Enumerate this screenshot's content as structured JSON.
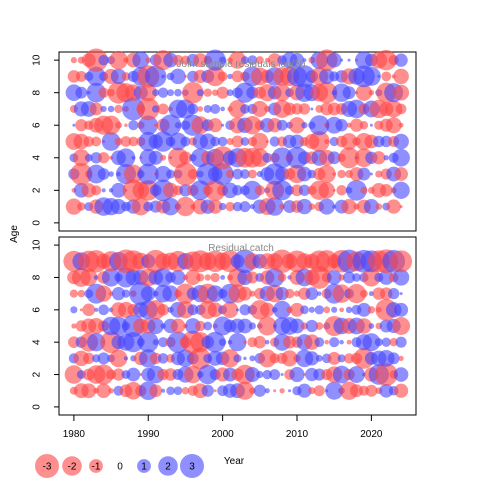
{
  "chart_data": [
    {
      "type": "scatter",
      "title": "Joint sample residuals log(N)",
      "ylabel": "Age",
      "xlim": [
        1978,
        2026
      ],
      "ylim": [
        -0.5,
        10.5
      ],
      "x_ticks": [
        "1980",
        "1990",
        "2000",
        "2010",
        "2020"
      ],
      "y_ticks": [
        "0",
        "2",
        "4",
        "6",
        "8",
        "10"
      ],
      "ages": [
        1,
        2,
        3,
        4,
        5,
        6,
        7,
        8,
        9,
        10
      ],
      "year_start": 1980,
      "year_end": 2024,
      "seed": 17,
      "colors": {
        "positive": "#4444ff",
        "negative": "#ff4444"
      }
    },
    {
      "type": "scatter",
      "title": "Residual catch",
      "xlabel": "Year",
      "ylabel": "Age",
      "xlim": [
        1978,
        2026
      ],
      "ylim": [
        -0.5,
        10.5
      ],
      "x_ticks": [
        "1980",
        "1990",
        "2000",
        "2010",
        "2020"
      ],
      "y_ticks": [
        "0",
        "2",
        "4",
        "6",
        "8",
        "10"
      ],
      "ages": [
        1,
        2,
        3,
        4,
        5,
        6,
        7,
        8,
        9
      ],
      "year_start": 1980,
      "year_end": 2024,
      "seed": 53,
      "colors": {
        "positive": "#4444ff",
        "negative": "#ff4444"
      }
    }
  ],
  "legend": {
    "entries": [
      {
        "label": "-3",
        "value": -3
      },
      {
        "label": "-2",
        "value": -2
      },
      {
        "label": "-1",
        "value": -1
      },
      {
        "label": "0",
        "value": 0
      },
      {
        "label": "1",
        "value": 1
      },
      {
        "label": "2",
        "value": 2
      },
      {
        "label": "3",
        "value": 3
      }
    ]
  }
}
